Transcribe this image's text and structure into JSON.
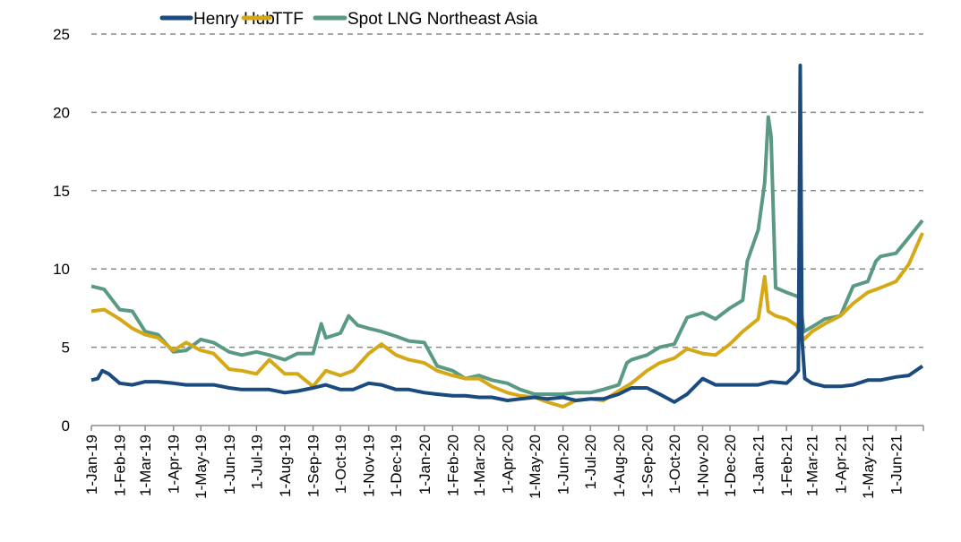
{
  "chart_data": {
    "type": "line",
    "title": "",
    "xlabel": "",
    "ylabel": "",
    "ylim": [
      0,
      25
    ],
    "yticks": [
      0,
      5,
      10,
      15,
      20,
      25
    ],
    "grid": "horizontal dashed",
    "legend_position": "top",
    "x_range": [
      "2019-01-01",
      "2021-06-30"
    ],
    "xtick_labels": [
      "1-Jan-19",
      "1-Feb-19",
      "1-Mar-19",
      "1-Apr-19",
      "1-May-19",
      "1-Jun-19",
      "1-Jul-19",
      "1-Aug-19",
      "1-Sep-19",
      "1-Oct-19",
      "1-Nov-19",
      "1-Dec-19",
      "1-Jan-20",
      "1-Feb-20",
      "1-Mar-20",
      "1-Apr-20",
      "1-May-20",
      "1-Jun-20",
      "1-Jul-20",
      "1-Aug-20",
      "1-Sep-20",
      "1-Oct-20",
      "1-Nov-20",
      "1-Dec-20",
      "1-Jan-21",
      "1-Feb-21",
      "1-Mar-21",
      "1-Apr-21",
      "1-May-21",
      "1-Jun-21"
    ],
    "series": [
      {
        "name": "Henry Hub",
        "color": "#1b4a7f",
        "points": [
          [
            "2019-01-01",
            2.9
          ],
          [
            "2019-01-08",
            3.0
          ],
          [
            "2019-01-13",
            3.5
          ],
          [
            "2019-01-20",
            3.3
          ],
          [
            "2019-02-01",
            2.7
          ],
          [
            "2019-02-15",
            2.6
          ],
          [
            "2019-03-01",
            2.8
          ],
          [
            "2019-03-15",
            2.8
          ],
          [
            "2019-04-01",
            2.7
          ],
          [
            "2019-04-15",
            2.6
          ],
          [
            "2019-05-01",
            2.6
          ],
          [
            "2019-05-15",
            2.6
          ],
          [
            "2019-06-01",
            2.4
          ],
          [
            "2019-06-15",
            2.3
          ],
          [
            "2019-07-01",
            2.3
          ],
          [
            "2019-07-15",
            2.3
          ],
          [
            "2019-08-01",
            2.1
          ],
          [
            "2019-08-15",
            2.2
          ],
          [
            "2019-09-01",
            2.4
          ],
          [
            "2019-09-15",
            2.6
          ],
          [
            "2019-10-01",
            2.3
          ],
          [
            "2019-10-15",
            2.3
          ],
          [
            "2019-11-01",
            2.7
          ],
          [
            "2019-11-15",
            2.6
          ],
          [
            "2019-12-01",
            2.3
          ],
          [
            "2019-12-15",
            2.3
          ],
          [
            "2020-01-01",
            2.1
          ],
          [
            "2020-01-15",
            2.0
          ],
          [
            "2020-02-01",
            1.9
          ],
          [
            "2020-02-15",
            1.9
          ],
          [
            "2020-03-01",
            1.8
          ],
          [
            "2020-03-15",
            1.8
          ],
          [
            "2020-04-01",
            1.6
          ],
          [
            "2020-04-15",
            1.7
          ],
          [
            "2020-05-01",
            1.8
          ],
          [
            "2020-05-15",
            1.7
          ],
          [
            "2020-06-01",
            1.8
          ],
          [
            "2020-06-15",
            1.6
          ],
          [
            "2020-07-01",
            1.7
          ],
          [
            "2020-07-15",
            1.7
          ],
          [
            "2020-08-01",
            2.0
          ],
          [
            "2020-08-15",
            2.4
          ],
          [
            "2020-09-01",
            2.4
          ],
          [
            "2020-09-15",
            2.0
          ],
          [
            "2020-10-01",
            1.5
          ],
          [
            "2020-10-15",
            2.0
          ],
          [
            "2020-11-01",
            3.0
          ],
          [
            "2020-11-15",
            2.6
          ],
          [
            "2020-12-01",
            2.6
          ],
          [
            "2020-12-15",
            2.6
          ],
          [
            "2021-01-01",
            2.6
          ],
          [
            "2021-01-15",
            2.8
          ],
          [
            "2021-02-01",
            2.7
          ],
          [
            "2021-02-10",
            3.2
          ],
          [
            "2021-02-14",
            3.5
          ],
          [
            "2021-02-16",
            23.0
          ],
          [
            "2021-02-18",
            5.5
          ],
          [
            "2021-02-21",
            3.0
          ],
          [
            "2021-03-01",
            2.7
          ],
          [
            "2021-03-15",
            2.5
          ],
          [
            "2021-04-01",
            2.5
          ],
          [
            "2021-04-15",
            2.6
          ],
          [
            "2021-05-01",
            2.9
          ],
          [
            "2021-05-15",
            2.9
          ],
          [
            "2021-06-01",
            3.1
          ],
          [
            "2021-06-15",
            3.2
          ],
          [
            "2021-06-30",
            3.8
          ]
        ]
      },
      {
        "name": "TTF",
        "color": "#d4a816",
        "points": [
          [
            "2019-01-01",
            7.3
          ],
          [
            "2019-01-15",
            7.4
          ],
          [
            "2019-02-01",
            6.8
          ],
          [
            "2019-02-15",
            6.2
          ],
          [
            "2019-03-01",
            5.8
          ],
          [
            "2019-03-15",
            5.6
          ],
          [
            "2019-04-01",
            4.8
          ],
          [
            "2019-04-15",
            5.3
          ],
          [
            "2019-05-01",
            4.8
          ],
          [
            "2019-05-15",
            4.6
          ],
          [
            "2019-06-01",
            3.6
          ],
          [
            "2019-06-15",
            3.5
          ],
          [
            "2019-07-01",
            3.3
          ],
          [
            "2019-07-15",
            4.2
          ],
          [
            "2019-08-01",
            3.3
          ],
          [
            "2019-08-15",
            3.3
          ],
          [
            "2019-09-01",
            2.5
          ],
          [
            "2019-09-15",
            3.5
          ],
          [
            "2019-10-01",
            3.2
          ],
          [
            "2019-10-15",
            3.5
          ],
          [
            "2019-11-01",
            4.6
          ],
          [
            "2019-11-15",
            5.2
          ],
          [
            "2019-12-01",
            4.5
          ],
          [
            "2019-12-15",
            4.2
          ],
          [
            "2020-01-01",
            4.0
          ],
          [
            "2020-01-15",
            3.5
          ],
          [
            "2020-02-01",
            3.2
          ],
          [
            "2020-02-15",
            3.0
          ],
          [
            "2020-03-01",
            3.0
          ],
          [
            "2020-03-15",
            2.5
          ],
          [
            "2020-04-01",
            2.1
          ],
          [
            "2020-04-15",
            1.9
          ],
          [
            "2020-05-01",
            1.8
          ],
          [
            "2020-05-15",
            1.5
          ],
          [
            "2020-06-01",
            1.2
          ],
          [
            "2020-06-15",
            1.6
          ],
          [
            "2020-07-01",
            1.7
          ],
          [
            "2020-07-15",
            1.6
          ],
          [
            "2020-08-01",
            2.2
          ],
          [
            "2020-08-15",
            2.7
          ],
          [
            "2020-09-01",
            3.5
          ],
          [
            "2020-09-15",
            4.0
          ],
          [
            "2020-10-01",
            4.3
          ],
          [
            "2020-10-15",
            4.9
          ],
          [
            "2020-11-01",
            4.6
          ],
          [
            "2020-11-15",
            4.5
          ],
          [
            "2020-12-01",
            5.2
          ],
          [
            "2020-12-15",
            6.0
          ],
          [
            "2021-01-01",
            6.8
          ],
          [
            "2021-01-08",
            9.5
          ],
          [
            "2021-01-12",
            7.3
          ],
          [
            "2021-01-20",
            7.0
          ],
          [
            "2021-02-01",
            6.8
          ],
          [
            "2021-02-12",
            6.4
          ],
          [
            "2021-02-20",
            5.5
          ],
          [
            "2021-03-01",
            6.0
          ],
          [
            "2021-03-15",
            6.5
          ],
          [
            "2021-04-01",
            7.0
          ],
          [
            "2021-04-15",
            7.8
          ],
          [
            "2021-05-01",
            8.5
          ],
          [
            "2021-05-15",
            8.8
          ],
          [
            "2021-06-01",
            9.2
          ],
          [
            "2021-06-15",
            10.3
          ],
          [
            "2021-06-30",
            12.3
          ]
        ]
      },
      {
        "name": "Spot LNG Northeast Asia",
        "color": "#5a9a85",
        "points": [
          [
            "2019-01-01",
            8.9
          ],
          [
            "2019-01-15",
            8.7
          ],
          [
            "2019-02-01",
            7.4
          ],
          [
            "2019-02-15",
            7.3
          ],
          [
            "2019-03-01",
            6.0
          ],
          [
            "2019-03-15",
            5.8
          ],
          [
            "2019-04-01",
            4.7
          ],
          [
            "2019-04-15",
            4.8
          ],
          [
            "2019-05-01",
            5.5
          ],
          [
            "2019-05-15",
            5.3
          ],
          [
            "2019-06-01",
            4.7
          ],
          [
            "2019-06-15",
            4.5
          ],
          [
            "2019-07-01",
            4.7
          ],
          [
            "2019-07-15",
            4.5
          ],
          [
            "2019-08-01",
            4.2
          ],
          [
            "2019-08-15",
            4.6
          ],
          [
            "2019-09-01",
            4.6
          ],
          [
            "2019-09-10",
            6.5
          ],
          [
            "2019-09-15",
            5.6
          ],
          [
            "2019-10-01",
            5.9
          ],
          [
            "2019-10-10",
            7.0
          ],
          [
            "2019-10-20",
            6.4
          ],
          [
            "2019-11-01",
            6.2
          ],
          [
            "2019-11-15",
            6.0
          ],
          [
            "2019-12-01",
            5.7
          ],
          [
            "2019-12-15",
            5.4
          ],
          [
            "2020-01-01",
            5.3
          ],
          [
            "2020-01-15",
            3.8
          ],
          [
            "2020-02-01",
            3.5
          ],
          [
            "2020-02-15",
            3.0
          ],
          [
            "2020-03-01",
            3.2
          ],
          [
            "2020-03-15",
            2.9
          ],
          [
            "2020-04-01",
            2.7
          ],
          [
            "2020-04-15",
            2.3
          ],
          [
            "2020-05-01",
            2.0
          ],
          [
            "2020-05-15",
            2.0
          ],
          [
            "2020-06-01",
            2.0
          ],
          [
            "2020-06-15",
            2.1
          ],
          [
            "2020-07-01",
            2.1
          ],
          [
            "2020-07-15",
            2.3
          ],
          [
            "2020-08-01",
            2.6
          ],
          [
            "2020-08-10",
            4.0
          ],
          [
            "2020-08-15",
            4.2
          ],
          [
            "2020-09-01",
            4.5
          ],
          [
            "2020-09-15",
            5.0
          ],
          [
            "2020-10-01",
            5.2
          ],
          [
            "2020-10-15",
            6.9
          ],
          [
            "2020-11-01",
            7.2
          ],
          [
            "2020-11-15",
            6.8
          ],
          [
            "2020-12-01",
            7.5
          ],
          [
            "2020-12-15",
            8.0
          ],
          [
            "2020-12-20",
            10.5
          ],
          [
            "2021-01-01",
            12.5
          ],
          [
            "2021-01-08",
            15.5
          ],
          [
            "2021-01-12",
            19.7
          ],
          [
            "2021-01-15",
            18.5
          ],
          [
            "2021-01-20",
            8.8
          ],
          [
            "2021-02-01",
            8.5
          ],
          [
            "2021-02-15",
            8.2
          ],
          [
            "2021-02-20",
            6.0
          ],
          [
            "2021-03-01",
            6.3
          ],
          [
            "2021-03-15",
            6.8
          ],
          [
            "2021-04-01",
            7.0
          ],
          [
            "2021-04-15",
            8.9
          ],
          [
            "2021-05-01",
            9.2
          ],
          [
            "2021-05-10",
            10.5
          ],
          [
            "2021-05-15",
            10.8
          ],
          [
            "2021-06-01",
            11.0
          ],
          [
            "2021-06-15",
            12.0
          ],
          [
            "2021-06-30",
            13.1
          ]
        ]
      }
    ]
  }
}
